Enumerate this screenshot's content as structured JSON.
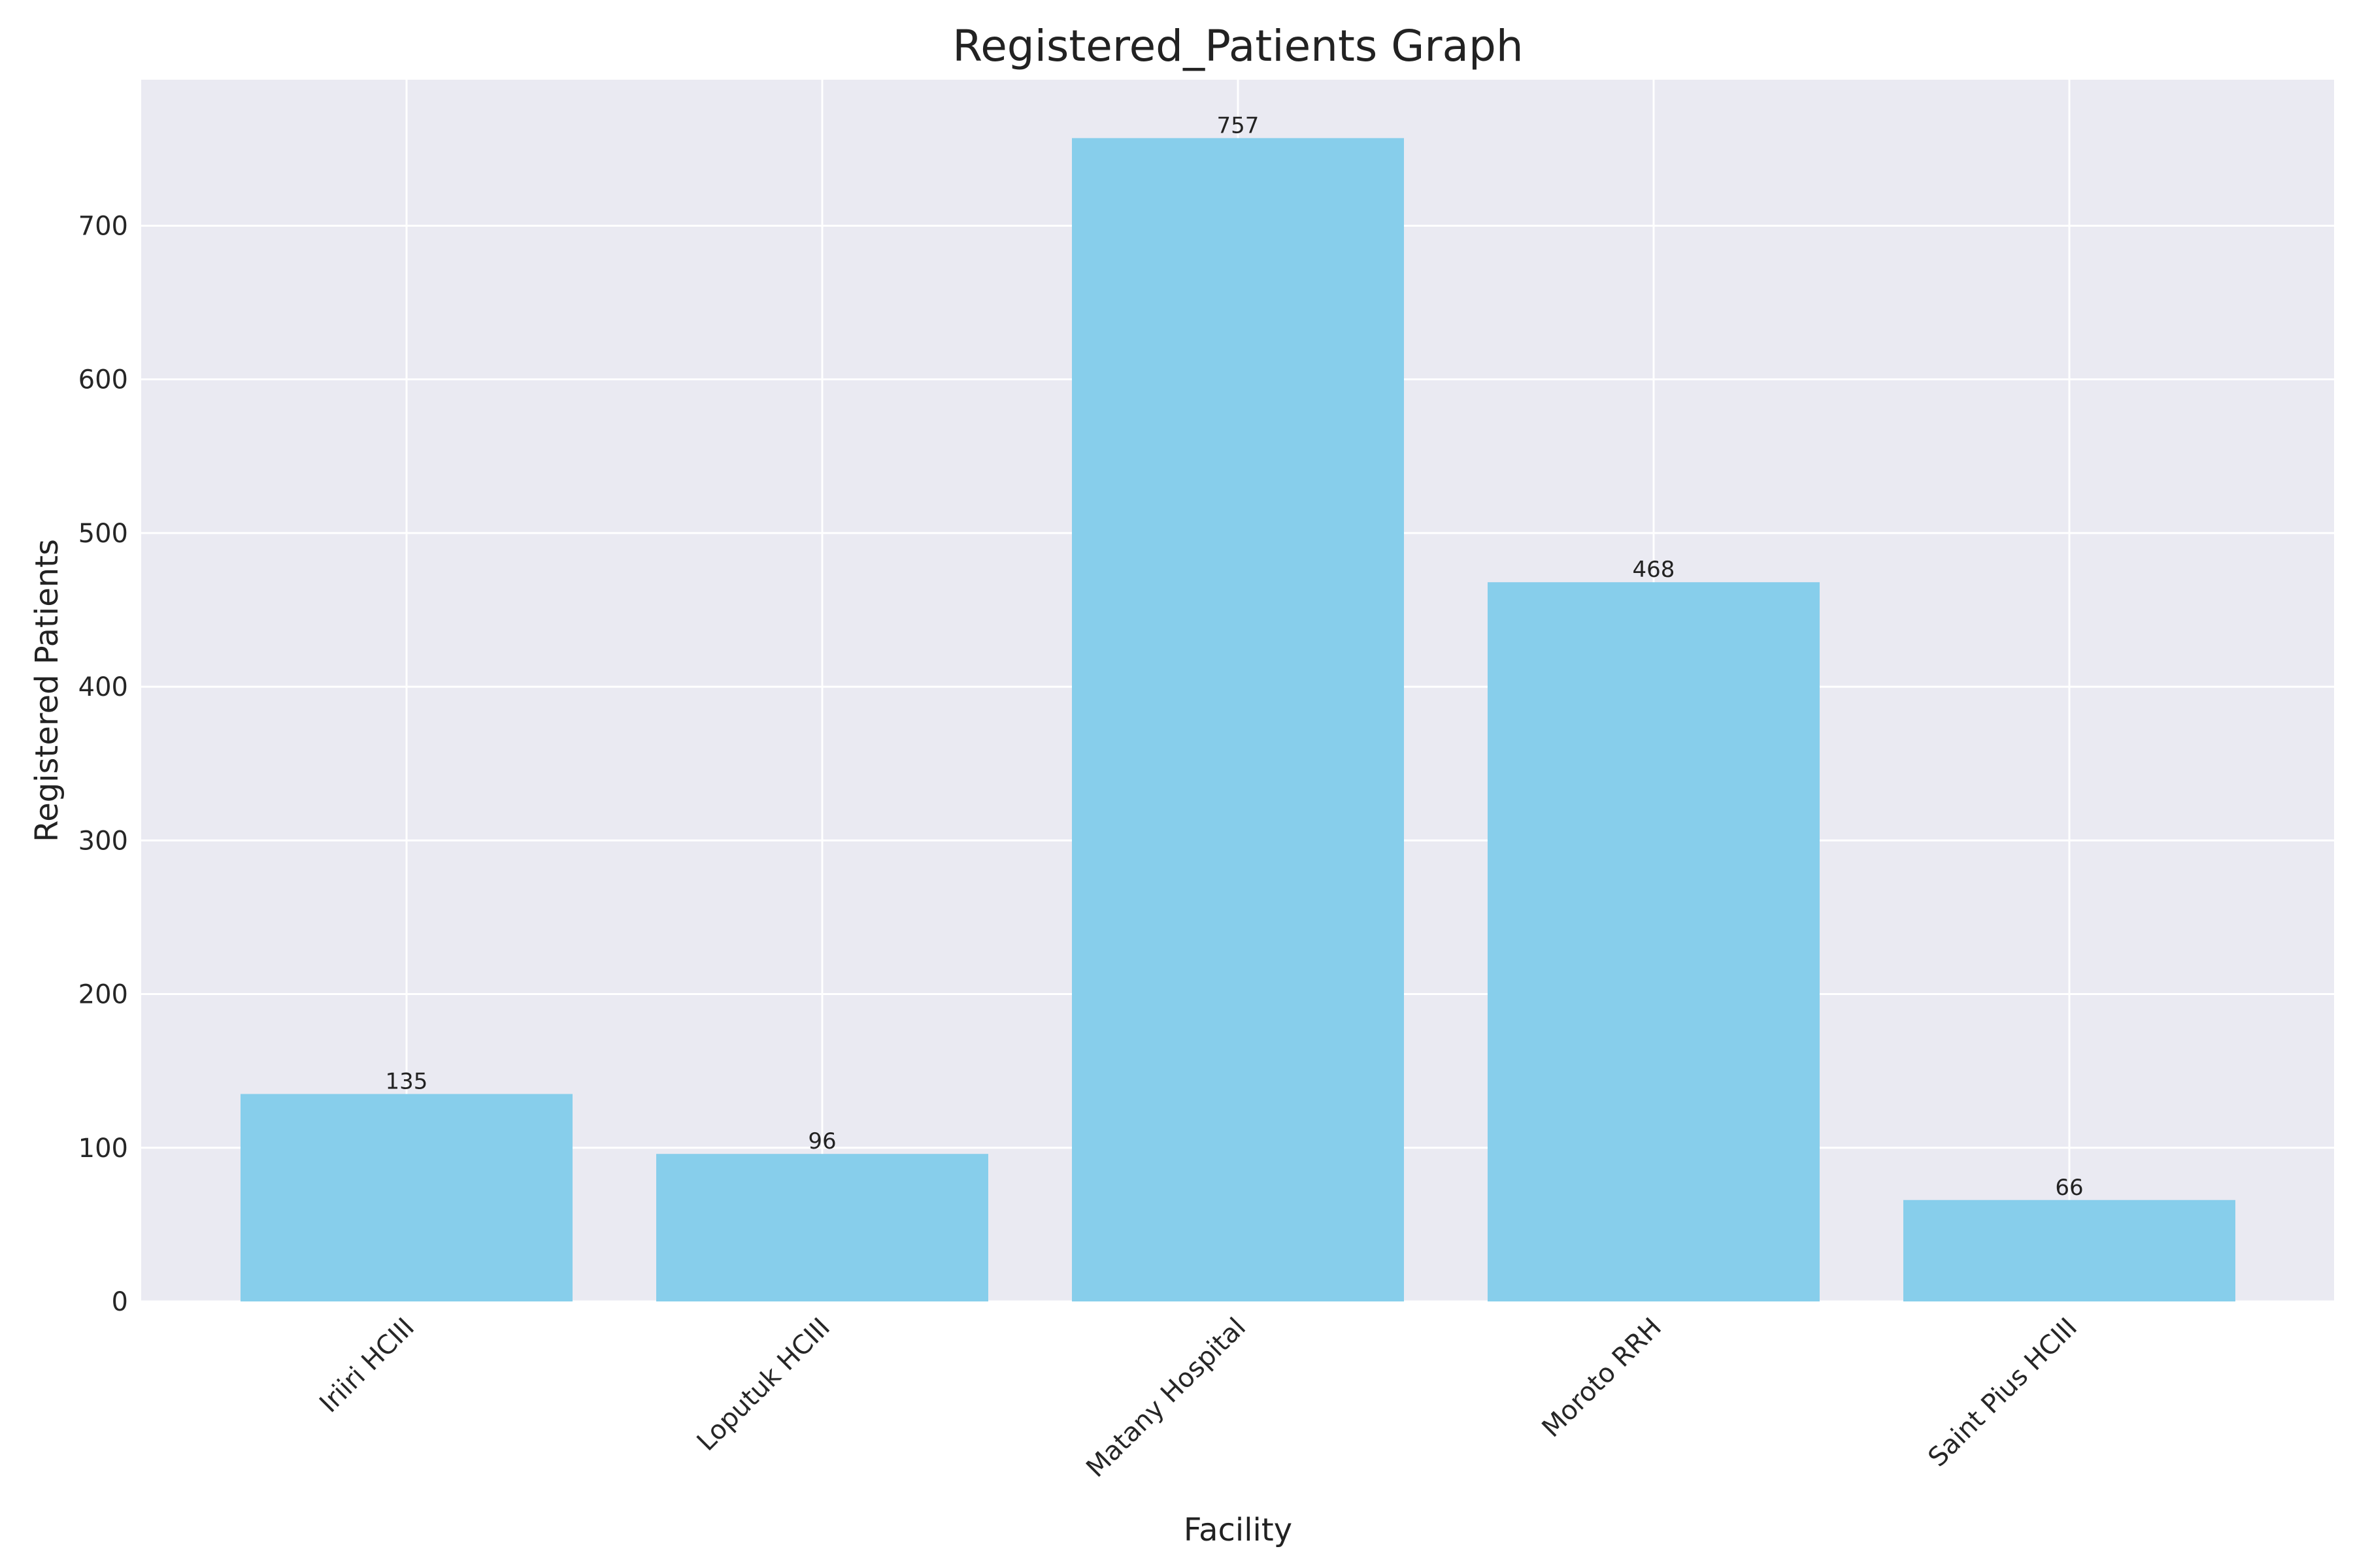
{
  "chart_data": {
    "type": "bar",
    "title": "Registered_Patients Graph",
    "xlabel": "Facility",
    "ylabel": "Registered Patients",
    "categories": [
      "Iriiri HCIII",
      "Loputuk HCIII",
      "Matany Hospital",
      "Moroto RRH",
      "Saint Pius HCIII"
    ],
    "values": [
      135,
      96,
      757,
      468,
      66
    ],
    "data_labels": [
      "135",
      "96",
      "757",
      "468",
      "66"
    ],
    "ylim": [
      0,
      795
    ],
    "yticks": [
      0,
      100,
      200,
      300,
      400,
      500,
      600,
      700
    ],
    "ytick_labels": [
      "0",
      "100",
      "200",
      "300",
      "400",
      "500",
      "600",
      "700"
    ],
    "grid": true,
    "legend": "none",
    "bar_color": "#87CEEB",
    "plot_background": "#EAEAF2",
    "grid_color": "#FFFFFF"
  }
}
